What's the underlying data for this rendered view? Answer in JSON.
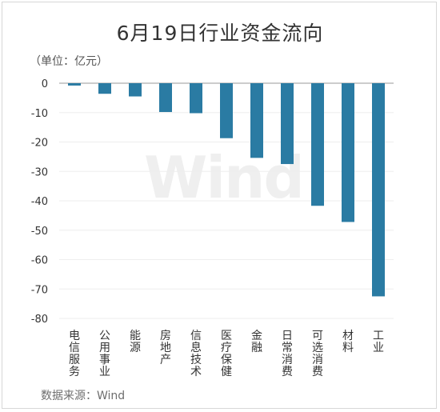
{
  "title": "6月19日行业资金流向",
  "unit": "（单位：亿元）",
  "source": "数据来源：Wind",
  "watermark": "Wind",
  "colors": {
    "bar": "#2a7ba3",
    "grid": "#eeeeee",
    "axis": "#999999"
  },
  "chart_data": {
    "type": "bar",
    "title": "6月19日行业资金流向",
    "xlabel": "",
    "ylabel": "（单位：亿元）",
    "categories": [
      "电信服务",
      "公用事业",
      "能源",
      "房地产",
      "信息技术",
      "医疗保健",
      "金融",
      "日常消费",
      "可选消费",
      "材料",
      "工业"
    ],
    "values": [
      -0.8,
      -3.6,
      -4.5,
      -9.8,
      -10.2,
      -18.7,
      -25.4,
      -27.5,
      -41.7,
      -47.2,
      -72.5
    ],
    "ylim": [
      -80,
      0
    ],
    "yticks": [
      0,
      -10,
      -20,
      -30,
      -40,
      -50,
      -60,
      -70,
      -80
    ],
    "grid": true,
    "legend": "none"
  }
}
